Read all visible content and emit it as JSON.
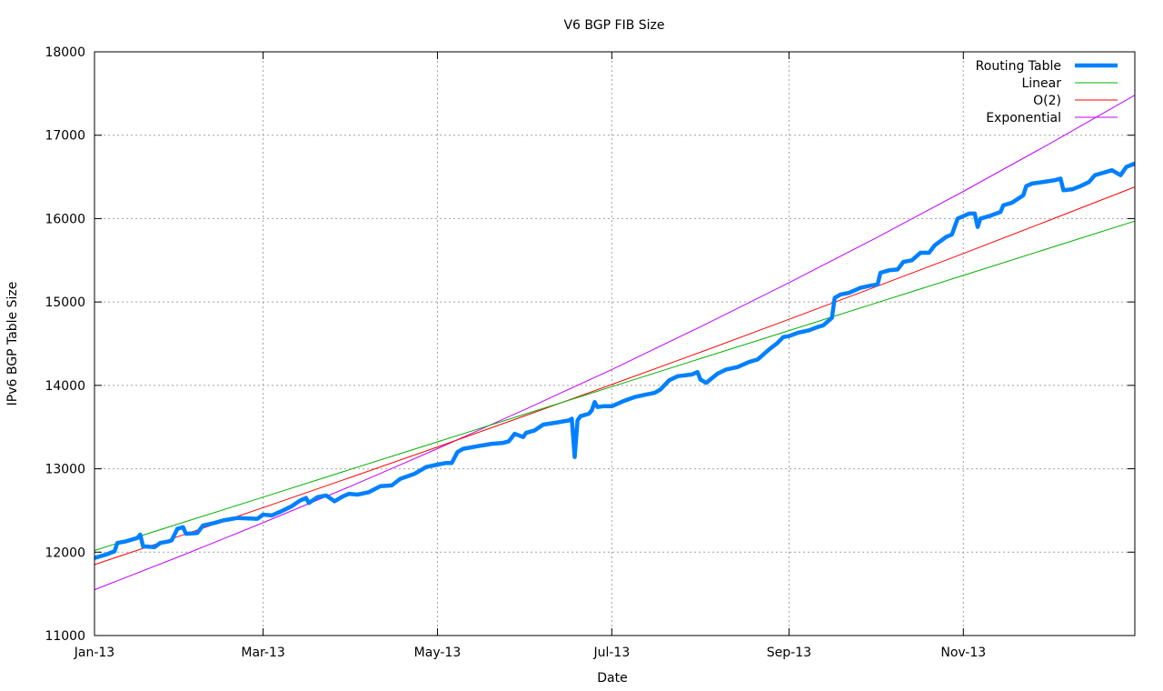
{
  "chart_data": {
    "type": "line",
    "title": "V6 BGP FIB Size",
    "xlabel": "Date",
    "ylabel": "IPv6 BGP Table Size",
    "xlim": [
      "2013-01-01",
      "2013-12-31"
    ],
    "ylim": [
      11000,
      18000
    ],
    "x_ticks": [
      {
        "date": "2013-01-01",
        "label": "Jan-13"
      },
      {
        "date": "2013-03-01",
        "label": "Mar-13"
      },
      {
        "date": "2013-05-01",
        "label": "May-13"
      },
      {
        "date": "2013-07-01",
        "label": "Jul-13"
      },
      {
        "date": "2013-09-01",
        "label": "Sep-13"
      },
      {
        "date": "2013-11-01",
        "label": "Nov-13"
      }
    ],
    "y_ticks": [
      11000,
      12000,
      13000,
      14000,
      15000,
      16000,
      17000,
      18000
    ],
    "grid": true,
    "legend_position": "top-right",
    "series": [
      {
        "name": "Routing Table",
        "color": "#0080ff",
        "width": "thick",
        "points": [
          [
            "2013-01-01",
            11930
          ],
          [
            "2013-01-05",
            11970
          ],
          [
            "2013-01-08",
            12010
          ],
          [
            "2013-01-09",
            12110
          ],
          [
            "2013-01-12",
            12130
          ],
          [
            "2013-01-16",
            12170
          ],
          [
            "2013-01-17",
            12210
          ],
          [
            "2013-01-18",
            12070
          ],
          [
            "2013-01-22",
            12060
          ],
          [
            "2013-01-24",
            12110
          ],
          [
            "2013-01-27",
            12130
          ],
          [
            "2013-01-28",
            12140
          ],
          [
            "2013-01-30",
            12280
          ],
          [
            "2013-02-01",
            12300
          ],
          [
            "2013-02-02",
            12220
          ],
          [
            "2013-02-06",
            12230
          ],
          [
            "2013-02-08",
            12320
          ],
          [
            "2013-02-12",
            12350
          ],
          [
            "2013-02-15",
            12380
          ],
          [
            "2013-02-20",
            12410
          ],
          [
            "2013-02-27",
            12400
          ],
          [
            "2013-03-01",
            12450
          ],
          [
            "2013-03-04",
            12440
          ],
          [
            "2013-03-08",
            12500
          ],
          [
            "2013-03-11",
            12550
          ],
          [
            "2013-03-14",
            12620
          ],
          [
            "2013-03-16",
            12650
          ],
          [
            "2013-03-17",
            12590
          ],
          [
            "2013-03-20",
            12660
          ],
          [
            "2013-03-23",
            12680
          ],
          [
            "2013-03-26",
            12610
          ],
          [
            "2013-03-29",
            12670
          ],
          [
            "2013-03-31",
            12700
          ],
          [
            "2013-04-03",
            12690
          ],
          [
            "2013-04-07",
            12720
          ],
          [
            "2013-04-11",
            12790
          ],
          [
            "2013-04-15",
            12800
          ],
          [
            "2013-04-18",
            12880
          ],
          [
            "2013-04-23",
            12940
          ],
          [
            "2013-04-27",
            13020
          ],
          [
            "2013-05-01",
            13050
          ],
          [
            "2013-05-04",
            13070
          ],
          [
            "2013-05-06",
            13070
          ],
          [
            "2013-05-08",
            13200
          ],
          [
            "2013-05-10",
            13240
          ],
          [
            "2013-05-15",
            13270
          ],
          [
            "2013-05-20",
            13300
          ],
          [
            "2013-05-24",
            13310
          ],
          [
            "2013-05-26",
            13330
          ],
          [
            "2013-05-28",
            13420
          ],
          [
            "2013-05-31",
            13380
          ],
          [
            "2013-06-01",
            13430
          ],
          [
            "2013-06-04",
            13460
          ],
          [
            "2013-06-07",
            13530
          ],
          [
            "2013-06-11",
            13550
          ],
          [
            "2013-06-16",
            13580
          ],
          [
            "2013-06-17",
            13600
          ],
          [
            "2013-06-18",
            13140
          ],
          [
            "2013-06-19",
            13580
          ],
          [
            "2013-06-20",
            13630
          ],
          [
            "2013-06-23",
            13660
          ],
          [
            "2013-06-24",
            13700
          ],
          [
            "2013-06-25",
            13800
          ],
          [
            "2013-06-26",
            13740
          ],
          [
            "2013-06-28",
            13750
          ],
          [
            "2013-07-01",
            13750
          ],
          [
            "2013-07-05",
            13810
          ],
          [
            "2013-07-09",
            13860
          ],
          [
            "2013-07-13",
            13890
          ],
          [
            "2013-07-16",
            13910
          ],
          [
            "2013-07-18",
            13950
          ],
          [
            "2013-07-21",
            14060
          ],
          [
            "2013-07-24",
            14110
          ],
          [
            "2013-07-29",
            14130
          ],
          [
            "2013-07-31",
            14160
          ],
          [
            "2013-08-01",
            14070
          ],
          [
            "2013-08-03",
            14030
          ],
          [
            "2013-08-07",
            14140
          ],
          [
            "2013-08-10",
            14190
          ],
          [
            "2013-08-14",
            14220
          ],
          [
            "2013-08-18",
            14280
          ],
          [
            "2013-08-21",
            14310
          ],
          [
            "2013-08-25",
            14430
          ],
          [
            "2013-08-28",
            14510
          ],
          [
            "2013-08-30",
            14580
          ],
          [
            "2013-09-01",
            14590
          ],
          [
            "2013-09-04",
            14630
          ],
          [
            "2013-09-08",
            14660
          ],
          [
            "2013-09-11",
            14700
          ],
          [
            "2013-09-13",
            14720
          ],
          [
            "2013-09-16",
            14810
          ],
          [
            "2013-09-17",
            15050
          ],
          [
            "2013-09-19",
            15090
          ],
          [
            "2013-09-22",
            15110
          ],
          [
            "2013-09-26",
            15170
          ],
          [
            "2013-09-30",
            15200
          ],
          [
            "2013-10-02",
            15210
          ],
          [
            "2013-10-03",
            15350
          ],
          [
            "2013-10-06",
            15380
          ],
          [
            "2013-10-09",
            15390
          ],
          [
            "2013-10-11",
            15480
          ],
          [
            "2013-10-14",
            15500
          ],
          [
            "2013-10-17",
            15590
          ],
          [
            "2013-10-20",
            15590
          ],
          [
            "2013-10-22",
            15680
          ],
          [
            "2013-10-24",
            15730
          ],
          [
            "2013-10-26",
            15780
          ],
          [
            "2013-10-28",
            15810
          ],
          [
            "2013-10-30",
            16000
          ],
          [
            "2013-11-01",
            16030
          ],
          [
            "2013-11-03",
            16060
          ],
          [
            "2013-11-05",
            16060
          ],
          [
            "2013-11-06",
            15900
          ],
          [
            "2013-11-07",
            16000
          ],
          [
            "2013-11-10",
            16030
          ],
          [
            "2013-11-14",
            16080
          ],
          [
            "2013-11-15",
            16160
          ],
          [
            "2013-11-18",
            16190
          ],
          [
            "2013-11-22",
            16280
          ],
          [
            "2013-11-23",
            16390
          ],
          [
            "2013-11-25",
            16420
          ],
          [
            "2013-11-29",
            16440
          ],
          [
            "2013-12-03",
            16460
          ],
          [
            "2013-12-05",
            16480
          ],
          [
            "2013-12-06",
            16340
          ],
          [
            "2013-12-09",
            16350
          ],
          [
            "2013-12-12",
            16390
          ],
          [
            "2013-12-15",
            16440
          ],
          [
            "2013-12-17",
            16520
          ],
          [
            "2013-12-20",
            16550
          ],
          [
            "2013-12-23",
            16580
          ],
          [
            "2013-12-26",
            16520
          ],
          [
            "2013-12-28",
            16620
          ],
          [
            "2013-12-31",
            16660
          ]
        ]
      },
      {
        "name": "Linear",
        "color": "#00b000",
        "width": "thin",
        "points": [
          [
            "2013-01-01",
            12020
          ],
          [
            "2013-02-01",
            12356
          ],
          [
            "2013-03-01",
            12660
          ],
          [
            "2013-04-01",
            12997
          ],
          [
            "2013-05-01",
            13322
          ],
          [
            "2013-06-01",
            13659
          ],
          [
            "2013-07-01",
            13984
          ],
          [
            "2013-08-01",
            14321
          ],
          [
            "2013-09-01",
            14657
          ],
          [
            "2013-10-01",
            14983
          ],
          [
            "2013-11-01",
            15319
          ],
          [
            "2013-12-01",
            15645
          ],
          [
            "2013-12-31",
            15970
          ]
        ]
      },
      {
        "name": "O(2)",
        "color": "#ff0000",
        "width": "thin",
        "points": [
          [
            "2013-01-01",
            11850
          ],
          [
            "2013-02-01",
            12207
          ],
          [
            "2013-03-01",
            12534
          ],
          [
            "2013-04-01",
            12902
          ],
          [
            "2013-05-01",
            13261
          ],
          [
            "2013-06-01",
            13640
          ],
          [
            "2013-07-01",
            14010
          ],
          [
            "2013-08-01",
            14398
          ],
          [
            "2013-09-01",
            14792
          ],
          [
            "2013-10-01",
            15178
          ],
          [
            "2013-11-01",
            15582
          ],
          [
            "2013-12-01",
            15979
          ],
          [
            "2013-12-31",
            16380
          ]
        ]
      },
      {
        "name": "Exponential",
        "color": "#c000ff",
        "width": "thin",
        "points": [
          [
            "2013-01-01",
            11550
          ],
          [
            "2013-02-01",
            11965
          ],
          [
            "2013-03-01",
            12353
          ],
          [
            "2013-04-01",
            12796
          ],
          [
            "2013-05-01",
            13241
          ],
          [
            "2013-06-01",
            13717
          ],
          [
            "2013-07-01",
            14190
          ],
          [
            "2013-08-01",
            14703
          ],
          [
            "2013-09-01",
            15232
          ],
          [
            "2013-10-01",
            15760
          ],
          [
            "2013-11-01",
            16326
          ],
          [
            "2013-12-01",
            16894
          ],
          [
            "2013-12-31",
            17480
          ]
        ]
      }
    ]
  }
}
